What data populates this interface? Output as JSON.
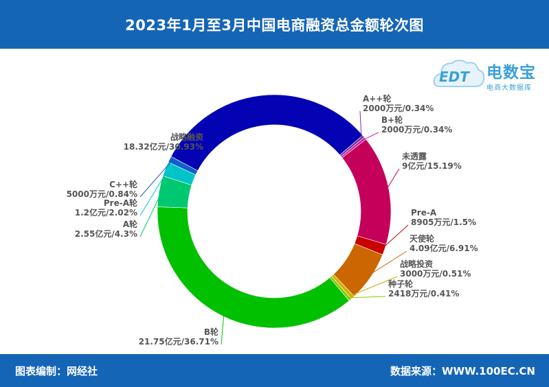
{
  "header": {
    "title": "2023年1月至3月中国电商融资总金额轮次图"
  },
  "footer": {
    "left": "图表编制：网经社",
    "right": "数据来源：WWW.100EC.CN"
  },
  "logo": {
    "title": "电数宝",
    "subtitle": "电商大数据库",
    "badge": "EDT"
  },
  "chart_data": {
    "type": "pie",
    "variant": "donut",
    "slices": [
      {
        "label": "战略融资",
        "value": 18.32,
        "value_text": "18.32亿元/30.93%",
        "percent": 30.93,
        "color": "#0303b4"
      },
      {
        "label": "A++轮",
        "value": 0.2,
        "value_text": "2000万元/0.34%",
        "percent": 0.34,
        "color": "#7030a0"
      },
      {
        "label": "B+轮",
        "value": 0.2,
        "value_text": "2000万元/0.34%",
        "percent": 0.34,
        "color": "#d81b9c"
      },
      {
        "label": "未透露",
        "value": 9.0,
        "value_text": "9亿元/15.19%",
        "percent": 15.19,
        "color": "#c4005a"
      },
      {
        "label": "Pre-A",
        "value": 0.8905,
        "value_text": "8905万元/1.5%",
        "percent": 1.5,
        "color": "#c80000"
      },
      {
        "label": "天使轮",
        "value": 4.09,
        "value_text": "4.09亿元/6.91%",
        "percent": 6.91,
        "color": "#cc6600"
      },
      {
        "label": "战略投资",
        "value": 0.3,
        "value_text": "3000万元/0.51%",
        "percent": 0.51,
        "color": "#c8b400"
      },
      {
        "label": "种子轮",
        "value": 0.2418,
        "value_text": "2418万元/0.41%",
        "percent": 0.41,
        "color": "#8cc800"
      },
      {
        "label": "B轮",
        "value": 21.75,
        "value_text": "21.75亿元/36.71%",
        "percent": 36.71,
        "color": "#00c000"
      },
      {
        "label": "A轮",
        "value": 2.55,
        "value_text": "2.55亿元/4.3%",
        "percent": 4.3,
        "color": "#00c870"
      },
      {
        "label": "Pre-A轮",
        "value": 1.2,
        "value_text": "1.2亿元/2.02%",
        "percent": 2.02,
        "color": "#00c4c8"
      },
      {
        "label": "C++轮",
        "value": 0.5,
        "value_text": "5000万元/0.84%",
        "percent": 0.84,
        "color": "#1060c8"
      }
    ]
  }
}
